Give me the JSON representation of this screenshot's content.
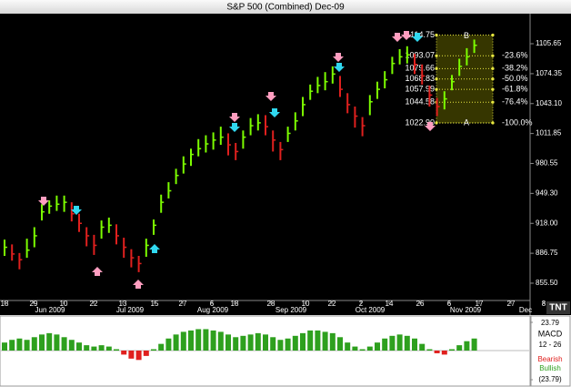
{
  "chart_data": {
    "type": "ohlc",
    "title": "S&P 500 (Combined) Dec-09",
    "logo": "TNT",
    "ylim": [
      837.4,
      1136.1
    ],
    "yticks": [
      1105.65,
      1074.35,
      {
        "value": 1043.1,
        "label": "1043.10"
      },
      1011.85,
      980.55,
      {
        "value": 949.3,
        "label": "949.30"
      },
      {
        "value": 918,
        "label": "918.00"
      },
      886.75,
      {
        "value": 855.5,
        "label": "855.50"
      }
    ],
    "x_tick_labels": [
      "18",
      "29",
      "10",
      "22",
      "13",
      "15",
      "27",
      "6",
      "18",
      "28",
      "10",
      "22",
      "2",
      "14",
      "26",
      "6",
      "17",
      "27",
      "8"
    ],
    "month_labels": [
      "Jun 2009",
      "Jul 2009",
      "Aug 2009",
      "Sep 2009",
      "Oct 2009",
      "Nov 2009",
      "Dec"
    ],
    "up_color": "#7cfc00",
    "down_color": "#e0201e",
    "close": [
      893,
      886,
      880,
      890,
      905,
      930,
      936,
      938,
      940,
      928,
      918,
      905,
      895,
      914,
      916,
      905,
      893,
      882,
      876,
      895,
      916,
      940,
      952,
      968,
      980,
      990,
      996,
      1001,
      1005,
      1008,
      1000,
      993,
      1008,
      1020,
      1023,
      1019,
      1005,
      995,
      1012,
      1025,
      1042,
      1056,
      1062,
      1066,
      1074,
      1058,
      1042,
      1030,
      1020,
      1045,
      1058,
      1068,
      1085,
      1092,
      1094,
      1084,
      1072,
      1052,
      1040,
      1048,
      1066,
      1082,
      1092,
      1104
    ],
    "high": [
      901,
      896,
      887,
      902,
      914,
      938,
      942,
      947,
      947,
      940,
      928,
      914,
      906,
      921,
      924,
      917,
      903,
      891,
      884,
      902,
      922,
      948,
      961,
      975,
      988,
      996,
      1006,
      1010,
      1013,
      1019,
      1012,
      1002,
      1015,
      1028,
      1032,
      1031,
      1015,
      1003,
      1019,
      1034,
      1050,
      1063,
      1071,
      1076,
      1082,
      1072,
      1054,
      1040,
      1029,
      1052,
      1066,
      1077,
      1092,
      1100,
      1103,
      1095,
      1084,
      1062,
      1049,
      1056,
      1073,
      1090,
      1101,
      1110
    ],
    "low": [
      884,
      879,
      870,
      882,
      893,
      921,
      928,
      931,
      930,
      920,
      909,
      894,
      885,
      902,
      908,
      896,
      882,
      872,
      867,
      883,
      906,
      929,
      944,
      959,
      970,
      978,
      988,
      992,
      995,
      1000,
      989,
      984,
      996,
      1010,
      1015,
      1010,
      993,
      984,
      1003,
      1015,
      1030,
      1047,
      1054,
      1057,
      1064,
      1050,
      1033,
      1018,
      1009,
      1031,
      1048,
      1059,
      1074,
      1084,
      1085,
      1074,
      1063,
      1040,
      1030,
      1037,
      1057,
      1072,
      1083,
      1096
    ],
    "fib": {
      "levels": [
        1114.75,
        1093.07,
        1079.66,
        1068.83,
        1057.99,
        1044.58,
        {
          "value": 1022.9,
          "label": "1022.90"
        }
      ],
      "pct_labels": [
        "-23.6%",
        "-38.2%",
        "-50.0%",
        "-61.8%",
        "-76.4%",
        "-100.0%"
      ],
      "top_label": "B",
      "bottom_label": "A",
      "color": "#e8e840"
    },
    "macd": {
      "title": "MACD",
      "params": "12 - 26",
      "bearish": "Bearish",
      "bullish": "Bullish",
      "ylim": [
        -23.79,
        23.79
      ],
      "yticks": [
        23.79,
        {
          "value": -23.79,
          "label": "(23.79)"
        }
      ],
      "pos_color": "#2ea01e",
      "neg_color": "#e0201e",
      "values": [
        6,
        8,
        9,
        8,
        10,
        12,
        13,
        12,
        10,
        8,
        6,
        4,
        3,
        4,
        3,
        1,
        -3,
        -6,
        -7,
        -4,
        1,
        5,
        9,
        12,
        14,
        15,
        16,
        16,
        15,
        14,
        12,
        10,
        11,
        12,
        13,
        12,
        10,
        8,
        9,
        11,
        13,
        15,
        15,
        14,
        13,
        10,
        6,
        3,
        1,
        3,
        6,
        9,
        11,
        12,
        11,
        9,
        5,
        1,
        -2,
        -3,
        1,
        4,
        7,
        9
      ]
    }
  }
}
